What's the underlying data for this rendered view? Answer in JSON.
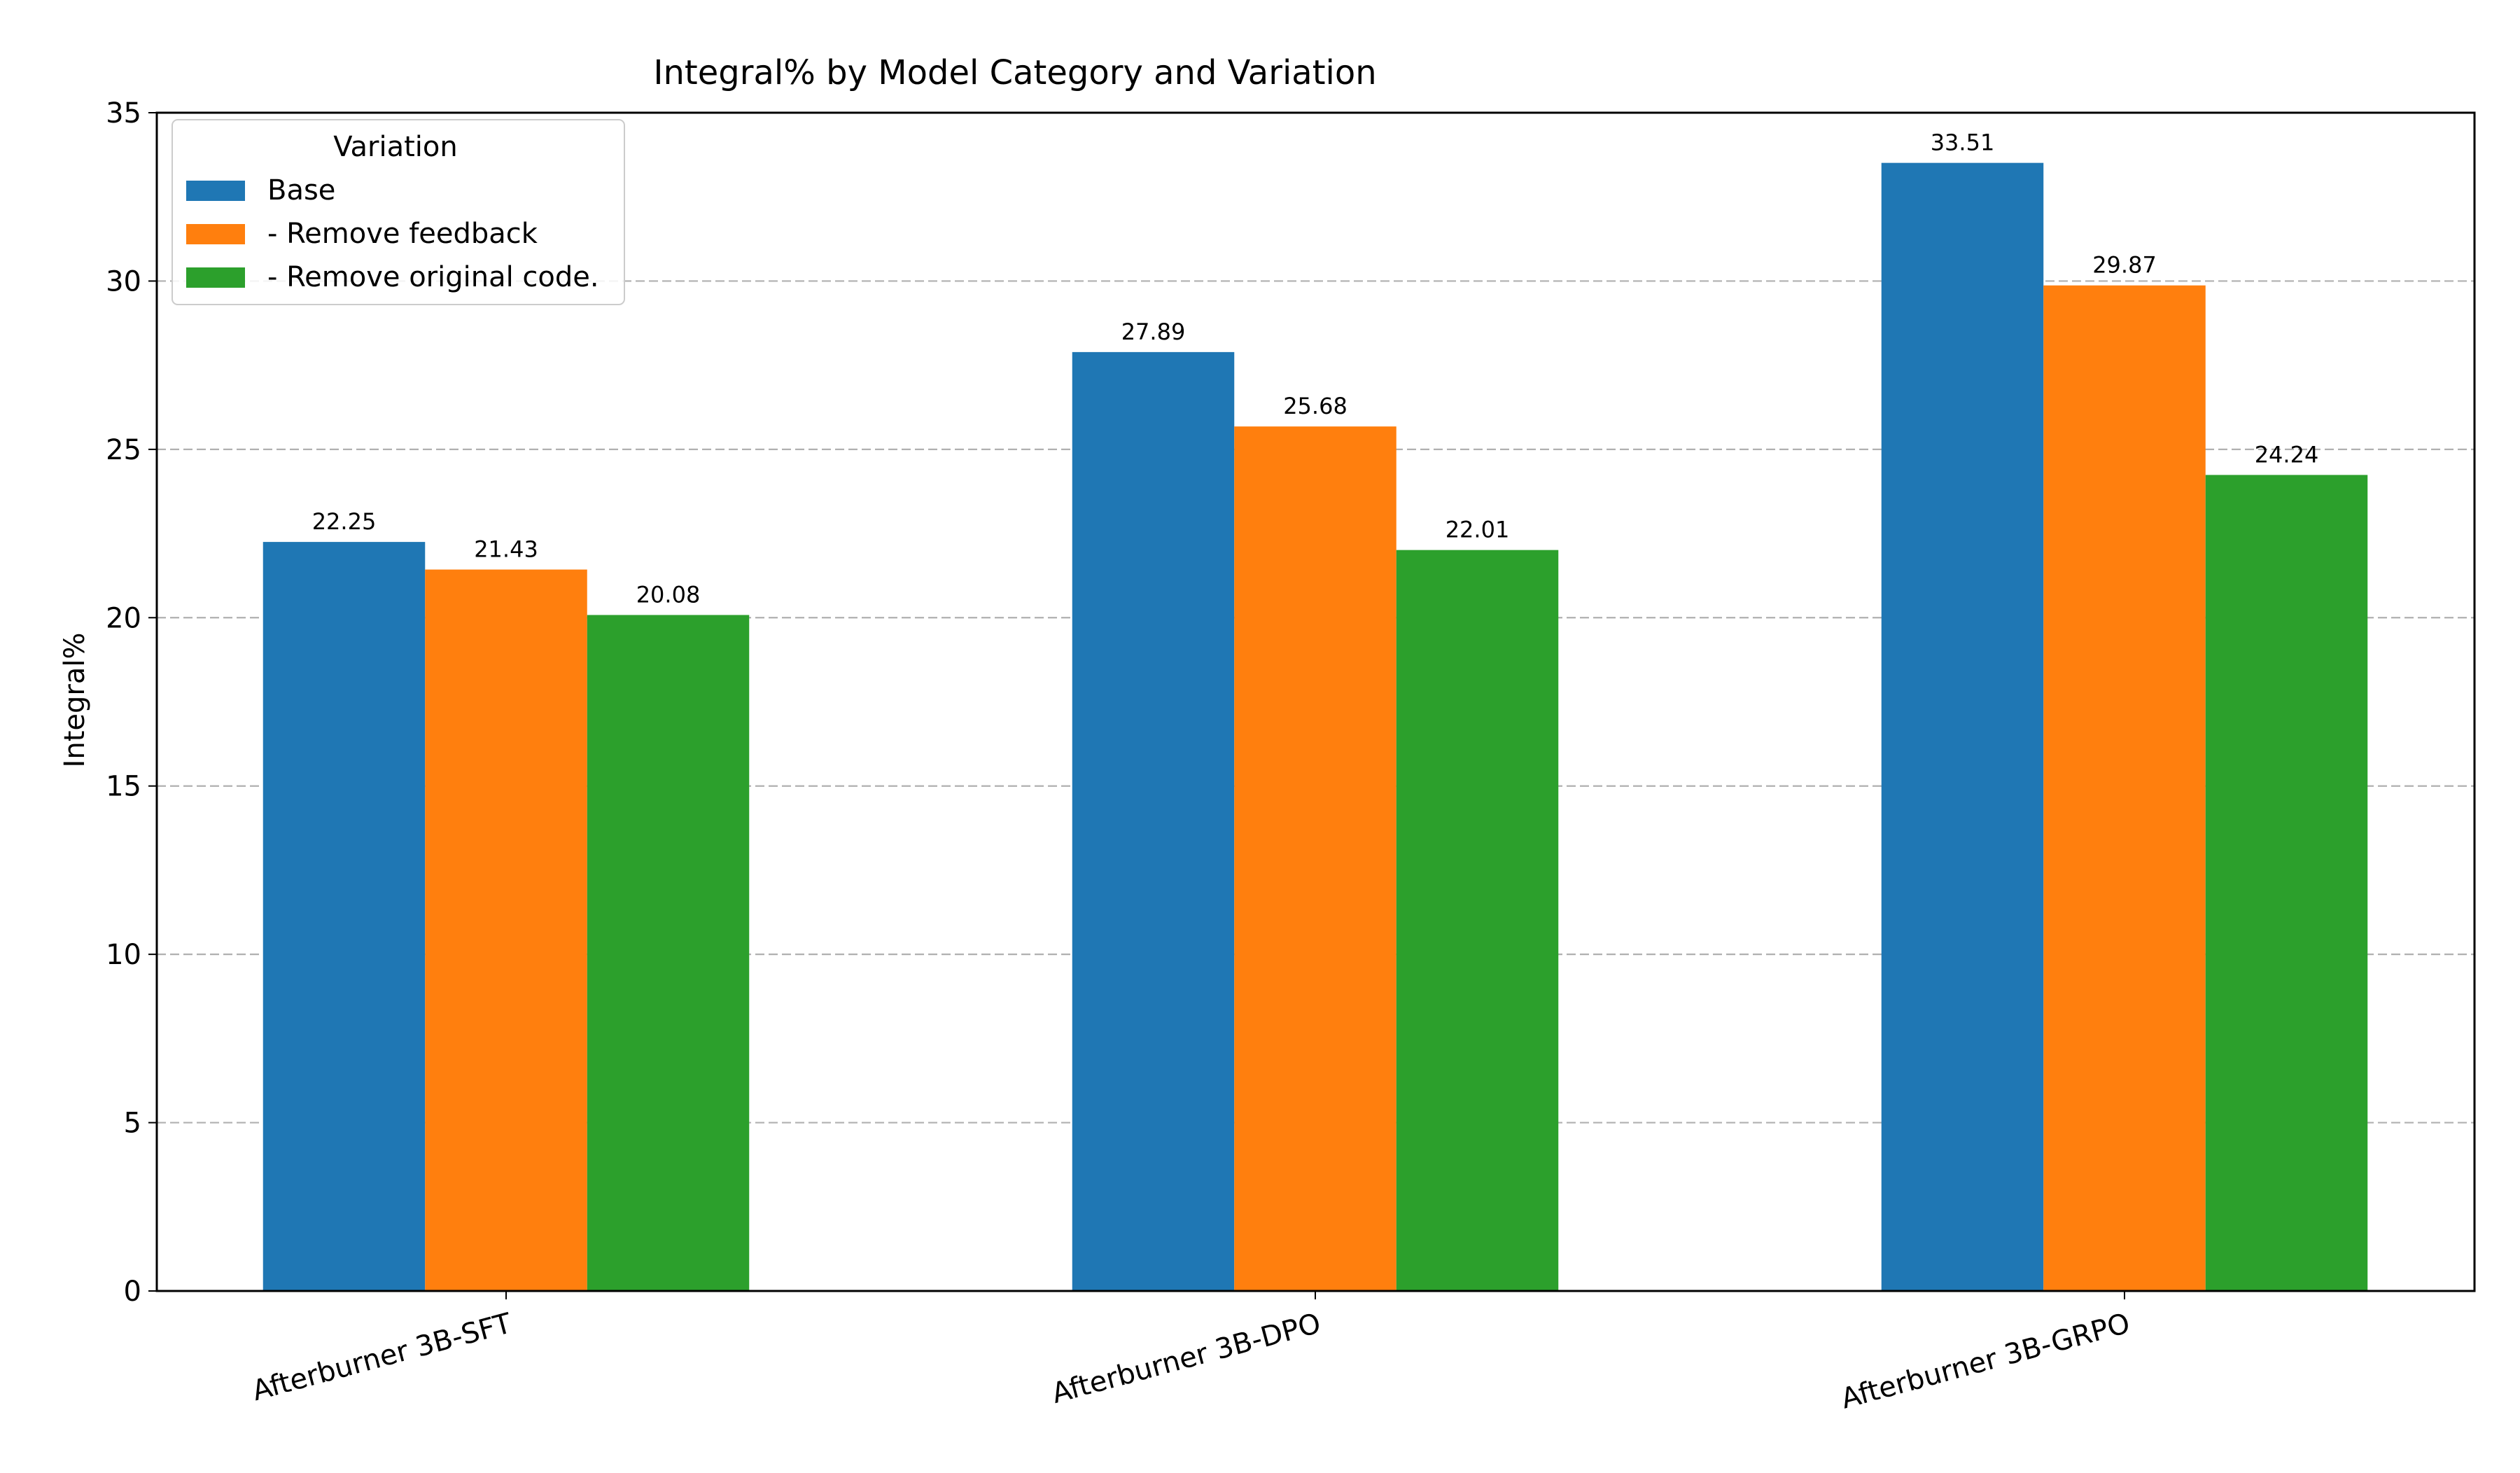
{
  "chart_data": {
    "type": "bar",
    "title": "Integral% by Model Category and Variation",
    "xlabel": "",
    "ylabel": "Integral%",
    "ylim": [
      0,
      35
    ],
    "yticks": [
      0,
      5,
      10,
      15,
      20,
      25,
      30,
      35
    ],
    "grid": "y-dashed",
    "legend": {
      "title": "Variation",
      "placement": "top-left"
    },
    "categories": [
      "Afterburner 3B-SFT",
      "Afterburner 3B-DPO",
      "Afterburner 3B-GRPO"
    ],
    "series": [
      {
        "name": "Base",
        "color": "#1f77b4",
        "values": [
          22.25,
          27.89,
          33.51
        ]
      },
      {
        "name": "- Remove feedback",
        "color": "#ff7f0e",
        "values": [
          21.43,
          25.68,
          29.87
        ]
      },
      {
        "name": "- Remove original code.",
        "color": "#2ca02c",
        "values": [
          20.08,
          22.01,
          24.24
        ]
      }
    ]
  }
}
